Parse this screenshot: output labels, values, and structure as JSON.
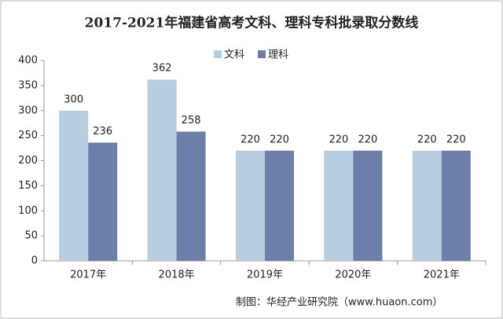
{
  "chart_data": {
    "type": "bar",
    "title": "2017-2021年福建省高考文科、理科专科批录取分数线",
    "categories": [
      "2017年",
      "2018年",
      "2019年",
      "2020年",
      "2021年"
    ],
    "series": [
      {
        "name": "文科",
        "color": "#b7cde0",
        "values": [
          300,
          362,
          220,
          220,
          220
        ]
      },
      {
        "name": "理科",
        "color": "#6c7fa8",
        "values": [
          236,
          258,
          220,
          220,
          220
        ]
      }
    ],
    "ylim": [
      0,
      400
    ],
    "yticks": [
      0,
      50,
      100,
      150,
      200,
      250,
      300,
      350,
      400
    ],
    "grid": false,
    "legend": "top",
    "source": "制图：华经产业研究院（www.huaon.com）"
  }
}
